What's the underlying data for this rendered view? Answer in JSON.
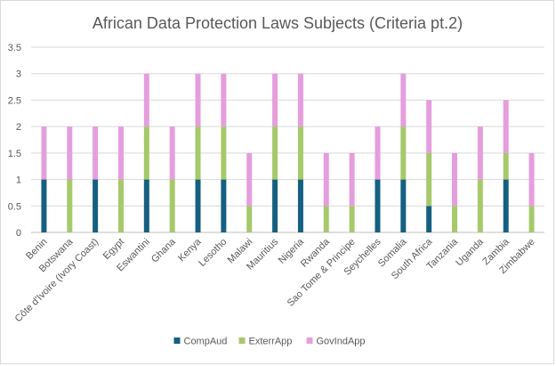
{
  "chart_data": {
    "type": "bar",
    "stacked": true,
    "title": "African Data Protection Laws Subjects (Criteria pt.2)",
    "xlabel": "",
    "ylabel": "",
    "ylim": [
      0,
      3.5
    ],
    "yticks": [
      "0",
      "0.5",
      "1",
      "1.5",
      "2",
      "2.5",
      "3",
      "3.5"
    ],
    "grid": true,
    "legend_position": "bottom",
    "categories": [
      "Benin",
      "Botswana",
      "Côte d'Ivoire (Ivory Coast)",
      "Egypt",
      "Eswantini",
      "Ghana",
      "Kenya",
      "Lesotho",
      "Malawi",
      "Mauritius",
      "Nigeria",
      "Rwanda",
      "Sao Tome & Principe",
      "Seychelles",
      "Somalia",
      "South Africa",
      "Tanzania",
      "Uganda",
      "Zambia",
      "Zimbabwe"
    ],
    "series": [
      {
        "name": "CompAud",
        "color": "#156082",
        "values": [
          1,
          0,
          1,
          0,
          1,
          0,
          1,
          1,
          0,
          1,
          1,
          0,
          0,
          1,
          1,
          0.5,
          0,
          0,
          1,
          0
        ]
      },
      {
        "name": "ExterrApp",
        "color": "#a6c96a",
        "values": [
          0,
          1,
          0,
          1,
          1,
          1,
          1,
          1,
          0.5,
          1,
          1,
          0.5,
          0.5,
          0,
          1,
          1,
          0.5,
          1,
          0.5,
          0.5
        ]
      },
      {
        "name": "GovIndApp",
        "color": "#e59edd",
        "values": [
          1,
          1,
          1,
          1,
          1,
          1,
          1,
          1,
          1,
          1,
          1,
          1,
          1,
          1,
          1,
          1,
          1,
          1,
          1,
          1
        ]
      }
    ]
  }
}
